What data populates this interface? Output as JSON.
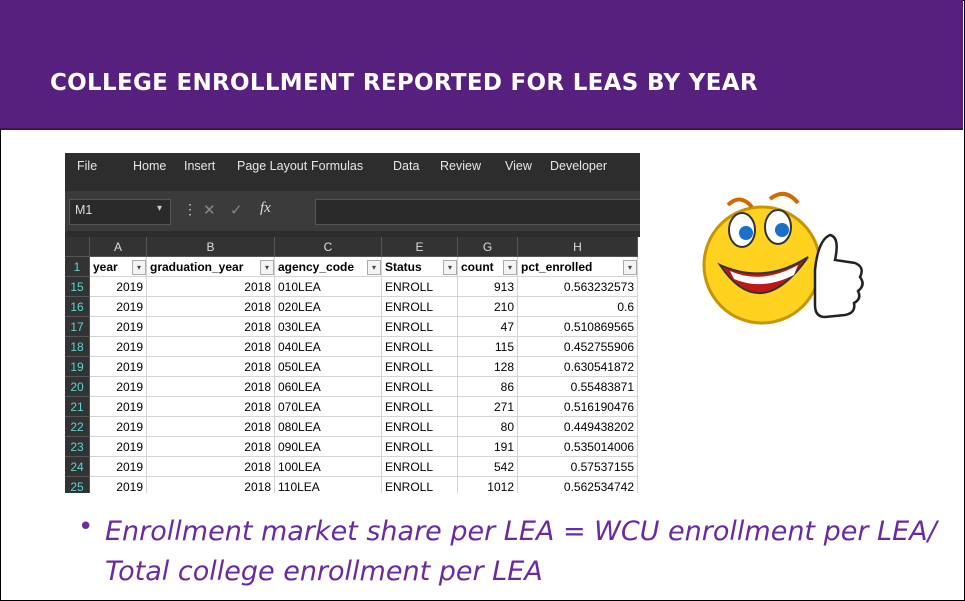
{
  "title": "COLLEGE ENROLLMENT REPORTED FOR LEAS BY YEAR",
  "ribbon": [
    "File",
    "Home",
    "Insert",
    "Page Layout",
    "Formulas",
    "Data",
    "Review",
    "View",
    "Developer"
  ],
  "name_box": "M1",
  "formula_label": "fx",
  "columns": [
    "A",
    "B",
    "C",
    "E",
    "G",
    "H"
  ],
  "table": {
    "header_row_number": 1,
    "header": [
      "year",
      "graduation_year",
      "agency_code",
      "Status",
      "count",
      "pct_enrolled"
    ],
    "row_numbers": [
      15,
      16,
      17,
      18,
      19,
      20,
      21,
      22,
      23,
      24,
      25
    ],
    "rows": [
      [
        2019,
        2018,
        "010LEA",
        "ENROLL",
        913,
        0.563232573
      ],
      [
        2019,
        2018,
        "020LEA",
        "ENROLL",
        210,
        0.6
      ],
      [
        2019,
        2018,
        "030LEA",
        "ENROLL",
        47,
        0.510869565
      ],
      [
        2019,
        2018,
        "040LEA",
        "ENROLL",
        115,
        0.452755906
      ],
      [
        2019,
        2018,
        "050LEA",
        "ENROLL",
        128,
        0.630541872
      ],
      [
        2019,
        2018,
        "060LEA",
        "ENROLL",
        86,
        0.55483871
      ],
      [
        2019,
        2018,
        "070LEA",
        "ENROLL",
        271,
        0.516190476
      ],
      [
        2019,
        2018,
        "080LEA",
        "ENROLL",
        80,
        0.449438202
      ],
      [
        2019,
        2018,
        "090LEA",
        "ENROLL",
        191,
        0.535014006
      ],
      [
        2019,
        2018,
        "100LEA",
        "ENROLL",
        542,
        0.57537155
      ],
      [
        2019,
        2018,
        "110LEA",
        "ENROLL",
        1012,
        0.562534742
      ]
    ]
  },
  "bullet_lines": [
    "Enrollment market share per LEA = WCU enrollment per LEA/",
    "Total college enrollment per LEA"
  ]
}
